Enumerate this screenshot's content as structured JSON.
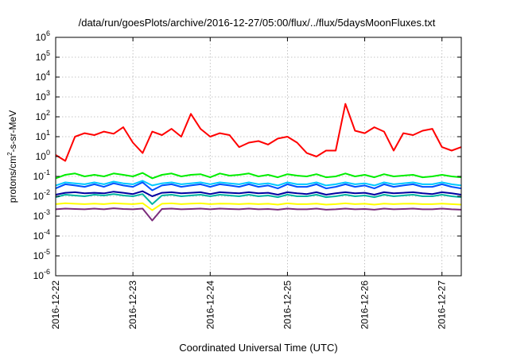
{
  "chart_data": {
    "type": "line",
    "title": "/data/run/goesPlots/archive/2016-12-27/05:00/flux/../flux/5daysMoonFluxes.txt",
    "xlabel": "Coordinated Universal Time (UTC)",
    "ylabel": {
      "base": "protons/cm",
      "sup": "2",
      "rest": "-s-sr-MeV"
    },
    "x_scale": "time",
    "y_scale": "log",
    "xlim": [
      "2016-12-22T00:00",
      "2016-12-27T06:00"
    ],
    "ylim": [
      1e-06,
      1000000.0
    ],
    "x_ticks": [
      "2016-12-22",
      "2016-12-23",
      "2016-12-24",
      "2016-12-25",
      "2016-12-26",
      "2016-12-27"
    ],
    "y_ticks": [
      {
        "value": 1e-06,
        "base": "10",
        "exp": "-6"
      },
      {
        "value": 1e-05,
        "base": "10",
        "exp": "-5"
      },
      {
        "value": 0.0001,
        "base": "10",
        "exp": "-4"
      },
      {
        "value": 0.001,
        "base": "10",
        "exp": "-3"
      },
      {
        "value": 0.01,
        "base": "10",
        "exp": "-2"
      },
      {
        "value": 0.1,
        "base": "10",
        "exp": "-1"
      },
      {
        "value": 1,
        "base": "10",
        "exp": "0"
      },
      {
        "value": 10,
        "base": "10",
        "exp": "1"
      },
      {
        "value": 100,
        "base": "10",
        "exp": "2"
      },
      {
        "value": 1000,
        "base": "10",
        "exp": "3"
      },
      {
        "value": 10000,
        "base": "10",
        "exp": "4"
      },
      {
        "value": 100000,
        "base": "10",
        "exp": "5"
      },
      {
        "value": 1000000,
        "base": "10",
        "exp": "6"
      }
    ],
    "grid": true,
    "legend": "none",
    "x": [
      "2016-12-22T00:00",
      "2016-12-22T03:00",
      "2016-12-22T06:00",
      "2016-12-22T09:00",
      "2016-12-22T12:00",
      "2016-12-22T15:00",
      "2016-12-22T18:00",
      "2016-12-22T21:00",
      "2016-12-23T00:00",
      "2016-12-23T03:00",
      "2016-12-23T06:00",
      "2016-12-23T09:00",
      "2016-12-23T12:00",
      "2016-12-23T15:00",
      "2016-12-23T18:00",
      "2016-12-23T21:00",
      "2016-12-24T00:00",
      "2016-12-24T03:00",
      "2016-12-24T06:00",
      "2016-12-24T09:00",
      "2016-12-24T12:00",
      "2016-12-24T15:00",
      "2016-12-24T18:00",
      "2016-12-24T21:00",
      "2016-12-25T00:00",
      "2016-12-25T03:00",
      "2016-12-25T06:00",
      "2016-12-25T09:00",
      "2016-12-25T12:00",
      "2016-12-25T15:00",
      "2016-12-25T18:00",
      "2016-12-25T21:00",
      "2016-12-26T00:00",
      "2016-12-26T03:00",
      "2016-12-26T06:00",
      "2016-12-26T09:00",
      "2016-12-26T12:00",
      "2016-12-26T15:00",
      "2016-12-26T18:00",
      "2016-12-26T21:00",
      "2016-12-27T00:00",
      "2016-12-27T03:00",
      "2016-12-27T06:00"
    ],
    "series": [
      {
        "color": "#ff0000",
        "values": [
          1.2,
          0.6,
          10,
          15,
          12,
          18,
          14,
          30,
          5,
          1.5,
          18,
          12,
          25,
          10,
          140,
          25,
          10,
          15,
          12,
          3,
          5,
          6,
          4,
          8,
          10,
          5,
          1.5,
          1,
          2,
          2,
          450,
          20,
          15,
          30,
          18,
          2,
          15,
          12,
          20,
          25,
          3,
          2,
          3
        ]
      },
      {
        "color": "#00ee00",
        "values": [
          0.08,
          0.12,
          0.14,
          0.1,
          0.12,
          0.1,
          0.14,
          0.12,
          0.1,
          0.15,
          0.08,
          0.12,
          0.14,
          0.1,
          0.12,
          0.13,
          0.09,
          0.14,
          0.11,
          0.12,
          0.14,
          0.1,
          0.12,
          0.09,
          0.13,
          0.11,
          0.1,
          0.13,
          0.09,
          0.1,
          0.14,
          0.1,
          0.12,
          0.09,
          0.13,
          0.1,
          0.11,
          0.12,
          0.09,
          0.1,
          0.12,
          0.1,
          0.09
        ]
      },
      {
        "color": "#00c8ff",
        "values": [
          0.035,
          0.05,
          0.045,
          0.04,
          0.05,
          0.04,
          0.055,
          0.045,
          0.04,
          0.06,
          0.035,
          0.045,
          0.05,
          0.04,
          0.045,
          0.05,
          0.04,
          0.05,
          0.045,
          0.04,
          0.05,
          0.04,
          0.045,
          0.035,
          0.05,
          0.04,
          0.04,
          0.05,
          0.035,
          0.04,
          0.05,
          0.04,
          0.045,
          0.035,
          0.05,
          0.04,
          0.045,
          0.05,
          0.04,
          0.04,
          0.05,
          0.04,
          0.035
        ]
      },
      {
        "color": "#0050ff",
        "values": [
          0.025,
          0.04,
          0.035,
          0.03,
          0.04,
          0.03,
          0.045,
          0.035,
          0.03,
          0.05,
          0.02,
          0.035,
          0.04,
          0.03,
          0.035,
          0.04,
          0.03,
          0.04,
          0.035,
          0.03,
          0.04,
          0.03,
          0.035,
          0.025,
          0.04,
          0.03,
          0.03,
          0.04,
          0.025,
          0.03,
          0.04,
          0.03,
          0.035,
          0.025,
          0.04,
          0.03,
          0.035,
          0.04,
          0.03,
          0.03,
          0.04,
          0.03,
          0.025
        ]
      },
      {
        "color": "#0000a0",
        "values": [
          0.012,
          0.015,
          0.016,
          0.014,
          0.015,
          0.014,
          0.017,
          0.015,
          0.013,
          0.018,
          0.01,
          0.015,
          0.016,
          0.014,
          0.015,
          0.016,
          0.013,
          0.016,
          0.015,
          0.014,
          0.016,
          0.014,
          0.015,
          0.012,
          0.016,
          0.014,
          0.013,
          0.016,
          0.012,
          0.014,
          0.016,
          0.014,
          0.015,
          0.012,
          0.016,
          0.014,
          0.015,
          0.016,
          0.014,
          0.013,
          0.016,
          0.014,
          0.012
        ]
      },
      {
        "color": "#00b4a0",
        "values": [
          0.009,
          0.012,
          0.011,
          0.01,
          0.012,
          0.011,
          0.013,
          0.011,
          0.01,
          0.013,
          0.004,
          0.011,
          0.012,
          0.01,
          0.011,
          0.012,
          0.01,
          0.012,
          0.011,
          0.01,
          0.012,
          0.01,
          0.011,
          0.009,
          0.012,
          0.01,
          0.01,
          0.012,
          0.009,
          0.01,
          0.012,
          0.01,
          0.011,
          0.009,
          0.012,
          0.01,
          0.011,
          0.012,
          0.01,
          0.01,
          0.012,
          0.01,
          0.009
        ]
      },
      {
        "color": "#ffff00",
        "values": [
          0.004,
          0.0045,
          0.0042,
          0.004,
          0.0043,
          0.004,
          0.0045,
          0.0042,
          0.004,
          0.0045,
          0.002,
          0.0042,
          0.0044,
          0.004,
          0.0043,
          0.0044,
          0.004,
          0.0043,
          0.0042,
          0.004,
          0.0043,
          0.004,
          0.0042,
          0.0038,
          0.0044,
          0.004,
          0.004,
          0.0043,
          0.0038,
          0.004,
          0.0044,
          0.004,
          0.0042,
          0.0038,
          0.0043,
          0.004,
          0.0042,
          0.0043,
          0.004,
          0.004,
          0.0043,
          0.004,
          0.0038
        ]
      },
      {
        "color": "#7b2c7b",
        "values": [
          0.0022,
          0.0024,
          0.0023,
          0.0022,
          0.0024,
          0.0022,
          0.0025,
          0.0023,
          0.0022,
          0.0024,
          0.0006,
          0.0023,
          0.0024,
          0.0022,
          0.0023,
          0.0024,
          0.0022,
          0.0024,
          0.0023,
          0.0022,
          0.0024,
          0.0022,
          0.0023,
          0.0021,
          0.0024,
          0.0022,
          0.0022,
          0.0024,
          0.0021,
          0.0022,
          0.0024,
          0.0022,
          0.0023,
          0.0021,
          0.0024,
          0.0022,
          0.0023,
          0.0024,
          0.0022,
          0.0022,
          0.0024,
          0.0022,
          0.0021
        ]
      }
    ]
  }
}
